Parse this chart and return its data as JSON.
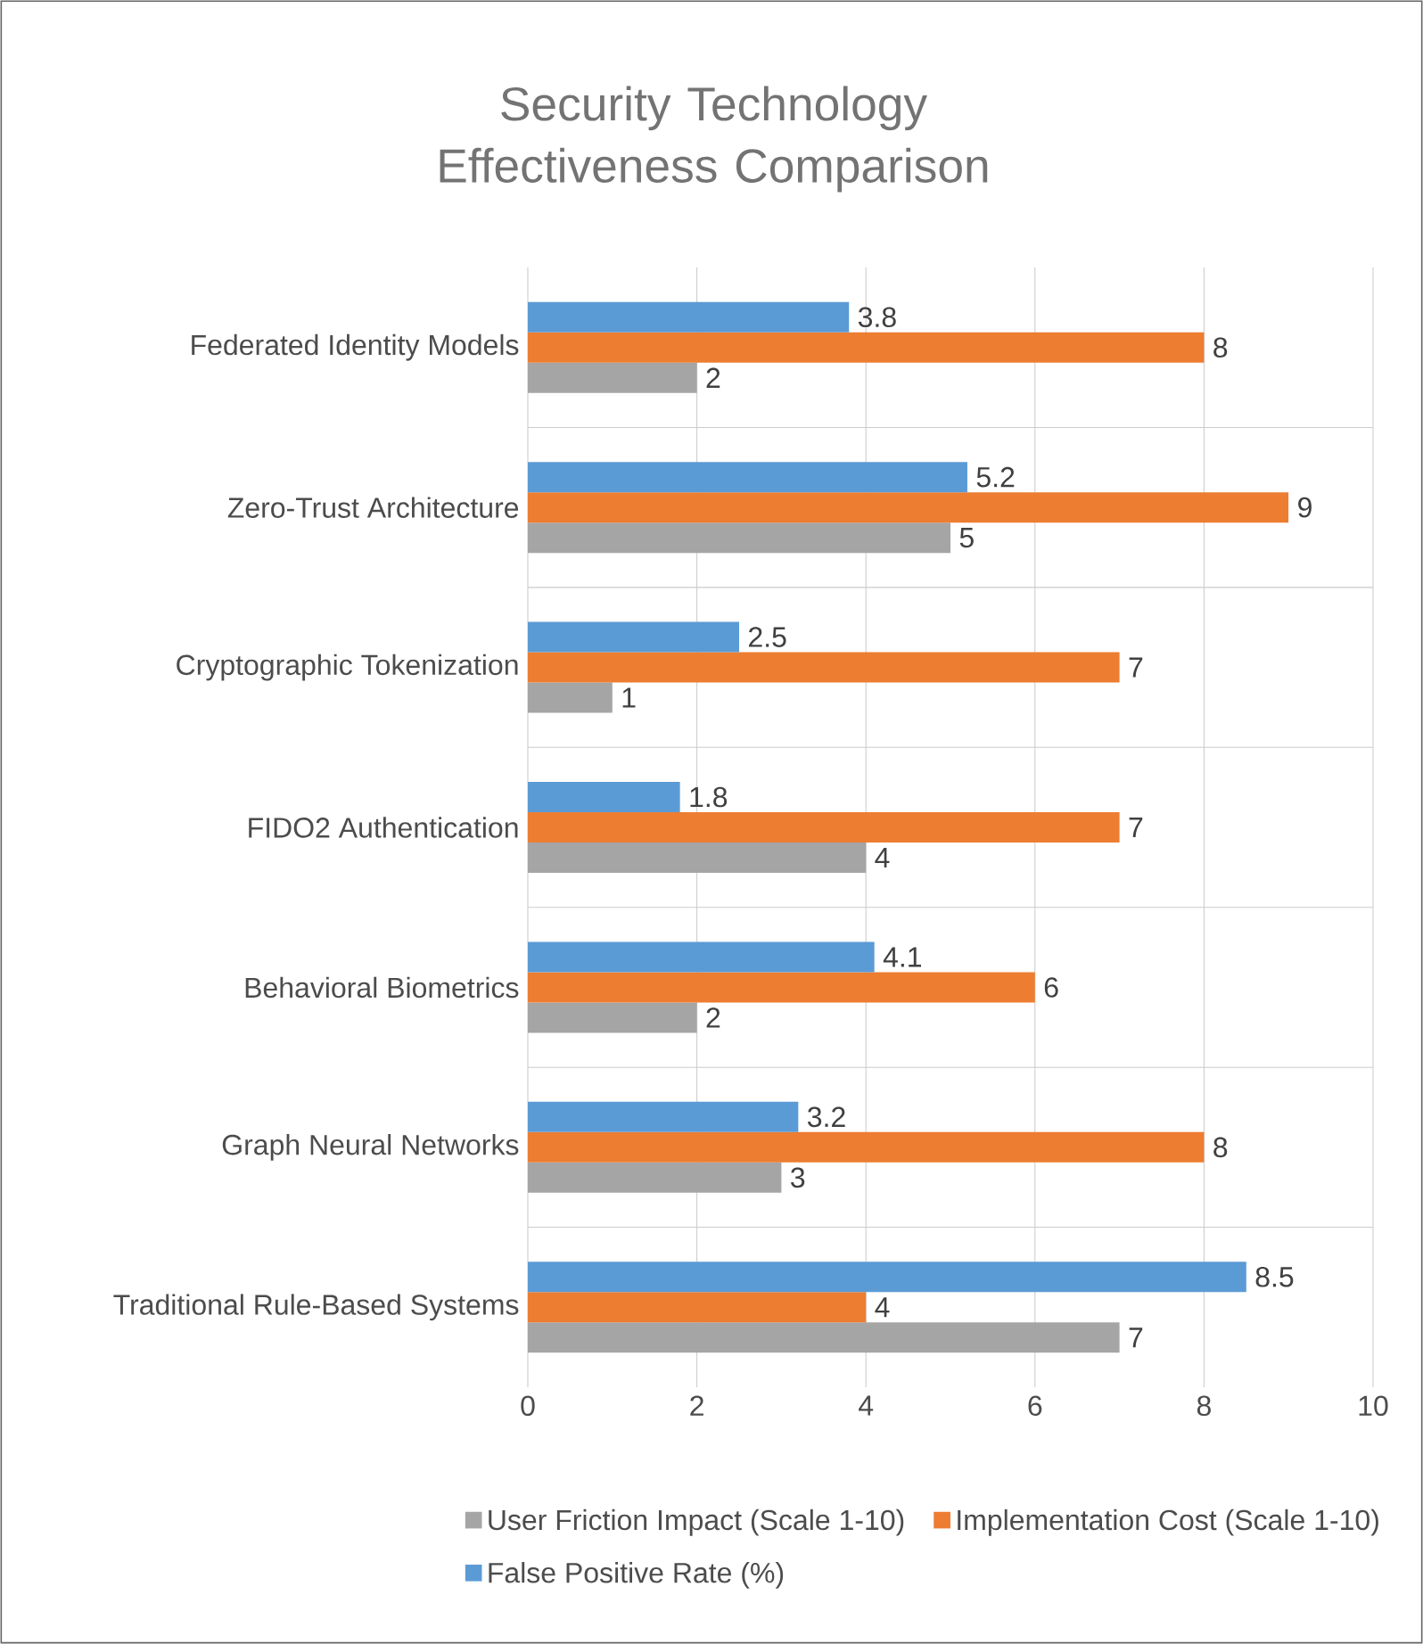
{
  "chart_data": {
    "type": "bar",
    "orientation": "horizontal",
    "title": "Security Technology Effectiveness Comparison",
    "categories": [
      "Federated Identity Models",
      "Zero-Trust Architecture",
      "Cryptographic Tokenization",
      "FIDO2 Authentication",
      "Behavioral Biometrics",
      "Graph Neural Networks",
      "Traditional Rule-Based Systems"
    ],
    "series": [
      {
        "name": "User Friction Impact (Scale 1-10)",
        "color": "#a5a5a5",
        "values": [
          2,
          5,
          1,
          4,
          2,
          3,
          7
        ]
      },
      {
        "name": "Implementation Cost (Scale 1-10)",
        "color": "#ed7d31",
        "values": [
          8,
          9,
          7,
          7,
          6,
          8,
          4
        ]
      },
      {
        "name": "False Positive Rate (%)",
        "color": "#5b9bd5",
        "values": [
          3.8,
          5.2,
          2.5,
          1.8,
          4.1,
          3.2,
          8.5
        ]
      }
    ],
    "xlim": [
      0,
      10
    ],
    "xticks": [
      0,
      2,
      4,
      6,
      8,
      10
    ],
    "grid": true,
    "legend": "bottom",
    "data_labels": true
  }
}
